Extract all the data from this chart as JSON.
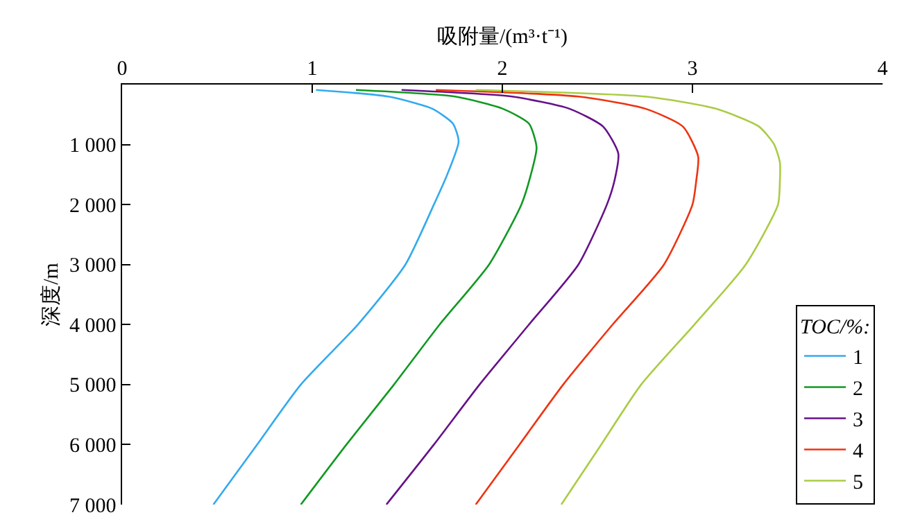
{
  "chart_data": {
    "type": "line",
    "xlabel": "吸附量/(m³·t⁻¹)",
    "ylabel": "深度/m",
    "legend_title": "TOC/%:",
    "legend": "bottom right",
    "grid": false,
    "marker": "none",
    "line_style": "solid",
    "xlim": [
      0,
      4
    ],
    "xticks": [
      0,
      1,
      2,
      3,
      4
    ],
    "ylim": [
      7000,
      0
    ],
    "yticks": [
      {
        "value": 1000,
        "label": "1 000"
      },
      {
        "value": 2000,
        "label": "2 000"
      },
      {
        "value": 3000,
        "label": "3 000"
      },
      {
        "value": 4000,
        "label": "4 000"
      },
      {
        "value": 5000,
        "label": "5 000"
      },
      {
        "value": 6000,
        "label": "6 000"
      },
      {
        "value": 7000,
        "label": "7 000"
      }
    ],
    "series": [
      {
        "name": "1",
        "color": "#33aaee",
        "x": [
          1.02,
          1.4,
          1.63,
          1.74,
          1.77,
          1.71,
          1.64,
          1.49,
          1.24,
          0.94,
          0.71,
          0.48
        ],
        "values": [
          90,
          200,
          400,
          650,
          950,
          1500,
          2000,
          3000,
          4000,
          5000,
          6000,
          7000
        ]
      },
      {
        "name": "2",
        "color": "#119922",
        "x": [
          1.23,
          1.75,
          2.0,
          2.14,
          2.18,
          2.15,
          2.1,
          1.93,
          1.67,
          1.43,
          1.18,
          0.94
        ],
        "values": [
          90,
          200,
          400,
          650,
          1050,
          1500,
          2000,
          3000,
          4000,
          5000,
          6000,
          7000
        ]
      },
      {
        "name": "3",
        "color": "#661188",
        "x": [
          1.47,
          2.05,
          2.35,
          2.53,
          2.61,
          2.59,
          2.55,
          2.4,
          2.14,
          1.88,
          1.64,
          1.39
        ],
        "values": [
          90,
          200,
          400,
          700,
          1150,
          1600,
          2000,
          3000,
          4000,
          5000,
          6000,
          7000
        ]
      },
      {
        "name": "4",
        "color": "#ee3311",
        "x": [
          1.65,
          2.4,
          2.75,
          2.95,
          3.03,
          3.02,
          3.0,
          2.85,
          2.58,
          2.32,
          2.09,
          1.86
        ],
        "values": [
          90,
          200,
          400,
          700,
          1200,
          1600,
          2000,
          3000,
          4000,
          5000,
          6000,
          7000
        ]
      },
      {
        "name": "5",
        "color": "#aacc44",
        "x": [
          1.86,
          2.75,
          3.12,
          3.35,
          3.43,
          3.46,
          3.46,
          3.45,
          3.28,
          3.01,
          2.73,
          2.52,
          2.31
        ],
        "values": [
          90,
          200,
          400,
          700,
          1000,
          1300,
          1600,
          2000,
          3000,
          4000,
          5000,
          6000,
          7000
        ]
      }
    ]
  }
}
